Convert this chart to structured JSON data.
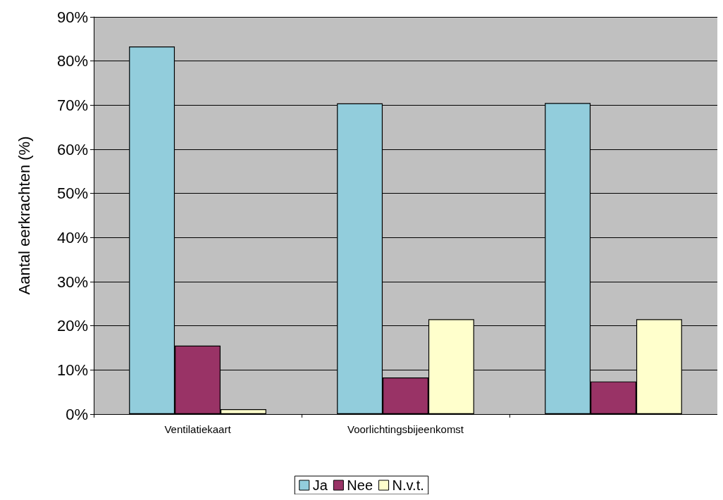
{
  "chart_data": {
    "type": "bar",
    "ylabel": "Aantal eerkrachten (%)",
    "categories": [
      "Ventilatiekaart",
      "Voorlichtingsbijeenkomst",
      null
    ],
    "series": [
      {
        "name": "Ja",
        "color": "#92cddc",
        "values": [
          83.3,
          70.4,
          70.5
        ]
      },
      {
        "name": "Nee",
        "color": "#993366",
        "values": [
          15.5,
          8.3,
          7.4
        ]
      },
      {
        "name": "N.v.t.",
        "color": "#ffffcc",
        "values": [
          1.1,
          21.5,
          21.5
        ]
      }
    ],
    "ylim": [
      0,
      90
    ],
    "yticks": [
      {
        "value": 0,
        "label": "0%"
      },
      {
        "value": 10,
        "label": "10%"
      },
      {
        "value": 20,
        "label": "20%"
      },
      {
        "value": 30,
        "label": "30%"
      },
      {
        "value": 40,
        "label": "40%"
      },
      {
        "value": 50,
        "label": "50%"
      },
      {
        "value": 60,
        "label": "60%"
      },
      {
        "value": 70,
        "label": "70%"
      },
      {
        "value": 80,
        "label": "80%"
      },
      {
        "value": 90,
        "label": "90%"
      }
    ],
    "grid": "y",
    "legend": "bottom"
  }
}
